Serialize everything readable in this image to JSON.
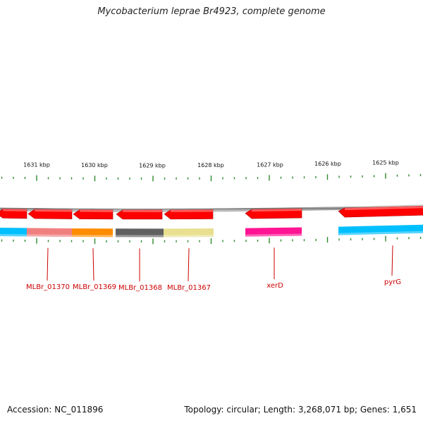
{
  "title": "Mycobacterium leprae Br4923, complete genome",
  "footer": {
    "accession": "Accession: NC_011896",
    "info": "Topology: circular; Length: 3,268,071 bp; Genes: 1,651"
  },
  "scale": {
    "unit": "kbp",
    "ticks": [
      "1631 kbp",
      "1630 kbp",
      "1629 kbp",
      "1628 kbp",
      "1627 kbp",
      "1626 kbp",
      "1625 kbp"
    ]
  },
  "genes": [
    {
      "name": "MLBr_01370",
      "color": "#f08080",
      "labeled": true
    },
    {
      "name": "MLBr_01369",
      "color": "#ff8c00",
      "labeled": true
    },
    {
      "name": "MLBr_01368",
      "color": "#606060",
      "labeled": true
    },
    {
      "name": "MLBr_01367",
      "color": "#e8e090",
      "labeled": true
    },
    {
      "name": "xerD",
      "color": "#ff1493",
      "labeled": true
    },
    {
      "name": "pyrG",
      "color": "#00bfff",
      "labeled": true
    },
    {
      "name": "",
      "color": "#00bfff",
      "labeled": false
    }
  ],
  "colors": {
    "cds_strand": "#ff0000",
    "backbone": "#888888",
    "tick": "#2e8b2e",
    "label": "#cc0000"
  }
}
